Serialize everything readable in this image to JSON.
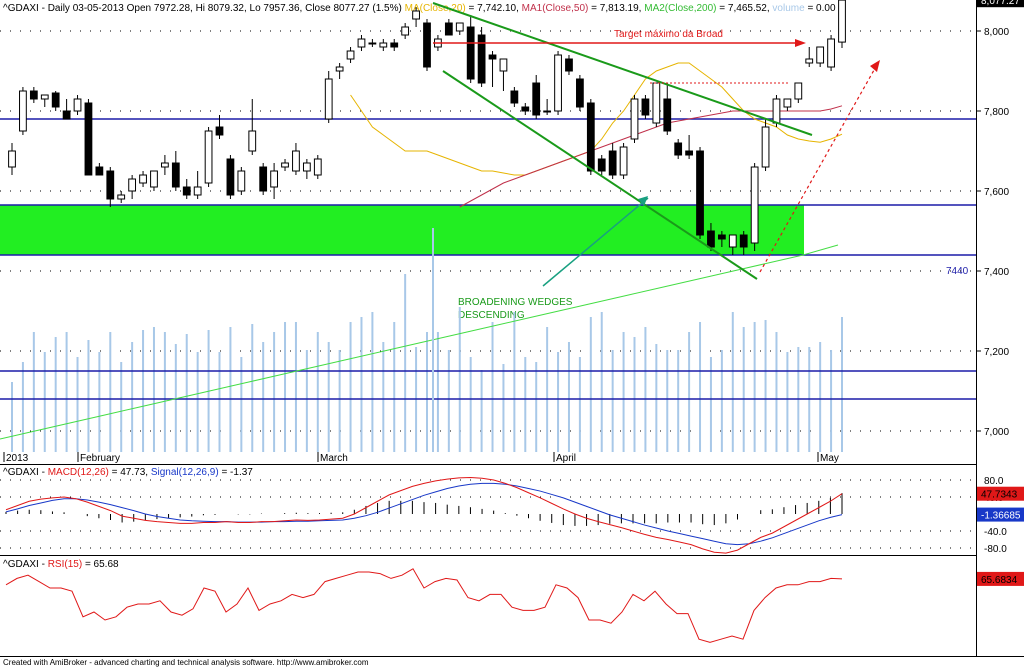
{
  "header": {
    "symbol": "^GDAXI",
    "ohlc": "- Daily 03-05-2013 Open 7972.28, Hi 8079.32, Lo 7957.36, Close 8077.27 (1.5%)",
    "ma20": "MA(Close,20)",
    "ma20_value": "= 7,742.10,",
    "ma50": "MA1(Close,50)",
    "ma50_value": "= 7,813.19,",
    "ma200": "MA2(Close,200)",
    "ma200_value": "= 7,465.52,",
    "volume": "volume",
    "volume_value": "= 0.00"
  },
  "annotations": {
    "target": "Target máximo da Broad",
    "wedge_line1": "BROADENING WEDGES",
    "wedge_line2": "DESCENDING",
    "level_label": "7440"
  },
  "macd_header": {
    "symbol": "^GDAXI -",
    "macd": "MACD(12,26)",
    "macd_value": "= 47.73,",
    "signal": "Signal(12,26,9)",
    "signal_value": "= -1.37"
  },
  "rsi_header": {
    "symbol": "^GDAXI -",
    "rsi": "RSI(15)",
    "rsi_value": "= 65.68"
  },
  "footer": "Created with AmiBroker - advanced charting and technical analysis software. http://www.amibroker.com",
  "colors": {
    "up": "#ffffff",
    "down": "#000000",
    "ma20": "#e6b400",
    "ma50": "#c0304a",
    "ma200": "#44dd44",
    "hline": "#1c1ca8",
    "zone": "#22ee22",
    "wedge": "#1a9a1a",
    "macd": "#e01818",
    "signal": "#1838c8",
    "rsi": "#e01818",
    "volume": "#a8c8e8"
  },
  "chart_data": [
    {
      "type": "candlestick",
      "title": "^GDAXI Daily",
      "y_axis_ticks": [
        "8,000",
        "7,800",
        "7,600",
        "7,400",
        "7,200",
        "7,000"
      ],
      "ylim": [
        6945,
        8175
      ],
      "x_labels": [
        "2013",
        "February",
        "March",
        "April",
        "May"
      ],
      "price_badge": "8,077.27",
      "candles": [
        {
          "o": 7660,
          "h": 7720,
          "l": 7640,
          "c": 7700
        },
        {
          "o": 7750,
          "h": 7860,
          "l": 7740,
          "c": 7850
        },
        {
          "o": 7850,
          "h": 7860,
          "l": 7820,
          "c": 7830
        },
        {
          "o": 7830,
          "h": 7840,
          "l": 7810,
          "c": 7840
        },
        {
          "o": 7845,
          "h": 7850,
          "l": 7800,
          "c": 7810
        },
        {
          "o": 7800,
          "h": 7830,
          "l": 7780,
          "c": 7780
        },
        {
          "o": 7800,
          "h": 7840,
          "l": 7790,
          "c": 7830
        },
        {
          "o": 7820,
          "h": 7830,
          "l": 7640,
          "c": 7640
        },
        {
          "o": 7660,
          "h": 7670,
          "l": 7640,
          "c": 7640
        },
        {
          "o": 7650,
          "h": 7660,
          "l": 7560,
          "c": 7580
        },
        {
          "o": 7580,
          "h": 7600,
          "l": 7570,
          "c": 7590
        },
        {
          "o": 7600,
          "h": 7640,
          "l": 7580,
          "c": 7630
        },
        {
          "o": 7620,
          "h": 7650,
          "l": 7610,
          "c": 7640
        },
        {
          "o": 7610,
          "h": 7650,
          "l": 7600,
          "c": 7650
        },
        {
          "o": 7660,
          "h": 7690,
          "l": 7640,
          "c": 7670
        },
        {
          "o": 7670,
          "h": 7700,
          "l": 7600,
          "c": 7610
        },
        {
          "o": 7610,
          "h": 7630,
          "l": 7580,
          "c": 7590
        },
        {
          "o": 7590,
          "h": 7650,
          "l": 7580,
          "c": 7610
        },
        {
          "o": 7620,
          "h": 7760,
          "l": 7610,
          "c": 7750
        },
        {
          "o": 7760,
          "h": 7790,
          "l": 7730,
          "c": 7740
        },
        {
          "o": 7680,
          "h": 7690,
          "l": 7580,
          "c": 7590
        },
        {
          "o": 7600,
          "h": 7660,
          "l": 7590,
          "c": 7650
        },
        {
          "o": 7700,
          "h": 7830,
          "l": 7690,
          "c": 7750
        },
        {
          "o": 7660,
          "h": 7670,
          "l": 7590,
          "c": 7600
        },
        {
          "o": 7610,
          "h": 7670,
          "l": 7580,
          "c": 7650
        },
        {
          "o": 7660,
          "h": 7680,
          "l": 7650,
          "c": 7670
        },
        {
          "o": 7650,
          "h": 7720,
          "l": 7640,
          "c": 7700
        },
        {
          "o": 7650,
          "h": 7680,
          "l": 7630,
          "c": 7670
        },
        {
          "o": 7640,
          "h": 7690,
          "l": 7630,
          "c": 7680
        },
        {
          "o": 7780,
          "h": 7900,
          "l": 7770,
          "c": 7880
        },
        {
          "o": 7900,
          "h": 7920,
          "l": 7880,
          "c": 7910
        },
        {
          "o": 7930,
          "h": 7960,
          "l": 7920,
          "c": 7950
        },
        {
          "o": 7960,
          "h": 7990,
          "l": 7950,
          "c": 7980
        },
        {
          "o": 7970,
          "h": 7980,
          "l": 7960,
          "c": 7970
        },
        {
          "o": 7960,
          "h": 7980,
          "l": 7950,
          "c": 7970
        },
        {
          "o": 7970,
          "h": 7980,
          "l": 7950,
          "c": 7960
        },
        {
          "o": 7990,
          "h": 8020,
          "l": 7980,
          "c": 8010
        },
        {
          "o": 8030,
          "h": 8060,
          "l": 8010,
          "c": 8050
        },
        {
          "o": 8020,
          "h": 8030,
          "l": 7900,
          "c": 7910
        },
        {
          "o": 7960,
          "h": 7990,
          "l": 7950,
          "c": 7980
        },
        {
          "o": 8020,
          "h": 8030,
          "l": 7990,
          "c": 7990
        },
        {
          "o": 8000,
          "h": 8020,
          "l": 7990,
          "c": 8020
        },
        {
          "o": 8010,
          "h": 8040,
          "l": 7870,
          "c": 7880
        },
        {
          "o": 7990,
          "h": 8010,
          "l": 7860,
          "c": 7870
        },
        {
          "o": 7940,
          "h": 7950,
          "l": 7860,
          "c": 7930
        },
        {
          "o": 7900,
          "h": 7930,
          "l": 7850,
          "c": 7930
        },
        {
          "o": 7850,
          "h": 7860,
          "l": 7810,
          "c": 7820
        },
        {
          "o": 7810,
          "h": 7820,
          "l": 7790,
          "c": 7800
        },
        {
          "o": 7870,
          "h": 7890,
          "l": 7780,
          "c": 7790
        },
        {
          "o": 7800,
          "h": 7830,
          "l": 7790,
          "c": 7800
        },
        {
          "o": 7800,
          "h": 7950,
          "l": 7790,
          "c": 7940
        },
        {
          "o": 7930,
          "h": 7940,
          "l": 7890,
          "c": 7900
        },
        {
          "o": 7880,
          "h": 7890,
          "l": 7800,
          "c": 7810
        },
        {
          "o": 7820,
          "h": 7830,
          "l": 7640,
          "c": 7650
        },
        {
          "o": 7680,
          "h": 7690,
          "l": 7640,
          "c": 7650
        },
        {
          "o": 7700,
          "h": 7720,
          "l": 7630,
          "c": 7640
        },
        {
          "o": 7640,
          "h": 7720,
          "l": 7630,
          "c": 7710
        },
        {
          "o": 7730,
          "h": 7840,
          "l": 7720,
          "c": 7830
        },
        {
          "o": 7830,
          "h": 7840,
          "l": 7780,
          "c": 7790
        },
        {
          "o": 7770,
          "h": 7860,
          "l": 7760,
          "c": 7870
        },
        {
          "o": 7830,
          "h": 7870,
          "l": 7740,
          "c": 7750
        },
        {
          "o": 7720,
          "h": 7730,
          "l": 7680,
          "c": 7690
        },
        {
          "o": 7700,
          "h": 7740,
          "l": 7680,
          "c": 7690
        },
        {
          "o": 7700,
          "h": 7710,
          "l": 7480,
          "c": 7490
        },
        {
          "o": 7500,
          "h": 7520,
          "l": 7450,
          "c": 7460
        },
        {
          "o": 7490,
          "h": 7500,
          "l": 7460,
          "c": 7480
        },
        {
          "o": 7460,
          "h": 7490,
          "l": 7440,
          "c": 7490
        },
        {
          "o": 7490,
          "h": 7500,
          "l": 7440,
          "c": 7460
        },
        {
          "o": 7470,
          "h": 7670,
          "l": 7450,
          "c": 7660
        },
        {
          "o": 7660,
          "h": 7780,
          "l": 7650,
          "c": 7760
        },
        {
          "o": 7770,
          "h": 7840,
          "l": 7760,
          "c": 7830
        },
        {
          "o": 7810,
          "h": 7830,
          "l": 7800,
          "c": 7830
        },
        {
          "o": 7830,
          "h": 7870,
          "l": 7820,
          "c": 7870
        },
        {
          "o": 7920,
          "h": 7960,
          "l": 7910,
          "c": 7930
        },
        {
          "o": 7920,
          "h": 7960,
          "l": 7910,
          "c": 7960
        },
        {
          "o": 7910,
          "h": 7990,
          "l": 7900,
          "c": 7980
        },
        {
          "o": 7972.28,
          "h": 8079.32,
          "l": 7957.36,
          "c": 8077.27
        }
      ],
      "volume": [
        70,
        90,
        120,
        100,
        115,
        120,
        95,
        112,
        100,
        120,
        90,
        110,
        122,
        125,
        120,
        108,
        118,
        100,
        122,
        100,
        125,
        95,
        128,
        110,
        120,
        130,
        130,
        102,
        120,
        110,
        102,
        130,
        135,
        140,
        110,
        130,
        178,
        105,
        120,
        120,
        102,
        145,
        95,
        82,
        130,
        88,
        140,
        95,
        90,
        125,
        100,
        110,
        95,
        135,
        140,
        102,
        120,
        115,
        125,
        108,
        102,
        102,
        120,
        130,
        95,
        102,
        140,
        125,
        130,
        132,
        120,
        100,
        105,
        105,
        110,
        102,
        135
      ],
      "ma20": [
        7840,
        7800,
        7760,
        7740,
        7720,
        7700,
        7700,
        7700,
        7690,
        7680,
        7670,
        7660,
        7650,
        7650,
        7645,
        7640,
        7640,
        7650,
        7660,
        7670,
        7680,
        7690,
        7700,
        7730,
        7770,
        7800,
        7840,
        7880,
        7900,
        7910,
        7920,
        7920,
        7900,
        7880,
        7860,
        7830,
        7800,
        7780,
        7770,
        7760,
        7740,
        7730,
        7725,
        7722,
        7730,
        7742
      ],
      "ma50": [
        7560,
        7575,
        7590,
        7605,
        7620,
        7630,
        7640,
        7650,
        7660,
        7670,
        7680,
        7690,
        7700,
        7710,
        7720,
        7730,
        7740,
        7750,
        7760,
        7770,
        7775,
        7780,
        7785,
        7790,
        7795,
        7800,
        7800,
        7800,
        7800,
        7800,
        7800,
        7800,
        7800,
        7800,
        7805,
        7813
      ],
      "ma200": [
        6980,
        7000,
        7020,
        7040,
        7060,
        7080,
        7100,
        7120,
        7140,
        7160,
        7180,
        7200,
        7220,
        7240,
        7260,
        7280,
        7300,
        7320,
        7340,
        7360,
        7380,
        7400,
        7420,
        7440,
        7465
      ]
    },
    {
      "type": "line",
      "title": "MACD(12,26)",
      "y_axis_ticks": [
        "80.0",
        "40.0",
        "-40.0",
        "-80.0"
      ],
      "ylim": [
        -100,
        100
      ],
      "value_badges": [
        "47.7343",
        "-1.36685"
      ],
      "series": [
        {
          "name": "MACD(12,26)",
          "values": [
            10,
            20,
            30,
            35,
            38,
            40,
            36,
            28,
            18,
            8,
            -5,
            -10,
            -15,
            -18,
            -20,
            -22,
            -22,
            -20,
            -20,
            -18,
            -20,
            -20,
            -18,
            -18,
            -16,
            -14,
            -15,
            -14,
            -12,
            -10,
            0,
            15,
            30,
            45,
            55,
            65,
            72,
            78,
            82,
            85,
            86,
            84,
            80,
            72,
            62,
            50,
            38,
            25,
            12,
            0,
            -10,
            -18,
            -25,
            -32,
            -40,
            -48,
            -55,
            -60,
            -66,
            -72,
            -82,
            -90,
            -92,
            -85,
            -70,
            -55,
            -45,
            -30,
            -15,
            0,
            15,
            30,
            47.73
          ]
        },
        {
          "name": "Signal(12,26,9)",
          "values": [
            5,
            12,
            20,
            26,
            32,
            36,
            36,
            33,
            28,
            22,
            15,
            8,
            0,
            -6,
            -10,
            -14,
            -16,
            -17,
            -18,
            -18,
            -19,
            -19,
            -19,
            -18,
            -18,
            -17,
            -17,
            -16,
            -15,
            -14,
            -10,
            -4,
            4,
            14,
            24,
            34,
            44,
            52,
            60,
            66,
            70,
            72,
            72,
            70,
            66,
            60,
            54,
            46,
            38,
            28,
            18,
            8,
            -2,
            -10,
            -18,
            -26,
            -33,
            -40,
            -46,
            -52,
            -58,
            -64,
            -70,
            -72,
            -70,
            -64,
            -56,
            -46,
            -36,
            -26,
            -16,
            -8,
            -1.37
          ]
        }
      ]
    },
    {
      "type": "line",
      "title": "RSI(15)",
      "series": [
        {
          "name": "RSI(15)",
          "values": [
            62,
            66,
            68,
            64,
            60,
            60,
            58,
            42,
            45,
            40,
            42,
            48,
            50,
            50,
            52,
            45,
            43,
            47,
            60,
            58,
            45,
            50,
            60,
            46,
            50,
            52,
            56,
            54,
            56,
            64,
            66,
            68,
            70,
            70,
            69,
            66,
            68,
            72,
            60,
            64,
            66,
            65,
            54,
            52,
            56,
            56,
            48,
            46,
            46,
            48,
            62,
            60,
            54,
            40,
            40,
            38,
            45,
            56,
            52,
            58,
            50,
            44,
            44,
            28,
            26,
            28,
            30,
            28,
            46,
            54,
            60,
            62,
            62,
            64,
            64,
            66,
            65.68
          ]
        }
      ],
      "value_badge": "65.6834"
    }
  ]
}
